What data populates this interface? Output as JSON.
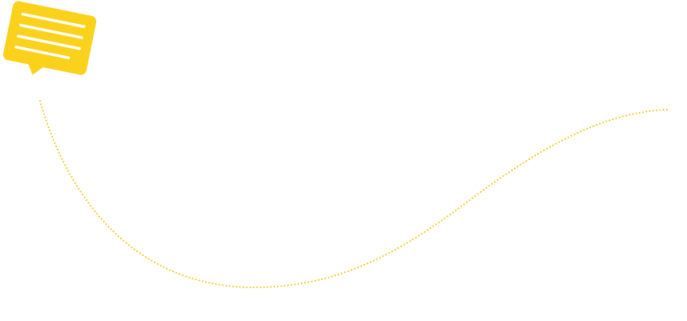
{
  "colors": {
    "background": "#ffffff",
    "accent": "#fad11b",
    "note_lines": "#ffffff",
    "path": "#f5c518"
  },
  "icons": {
    "note": "speech-bubble-note-icon"
  },
  "path": {
    "style": "dotted"
  }
}
